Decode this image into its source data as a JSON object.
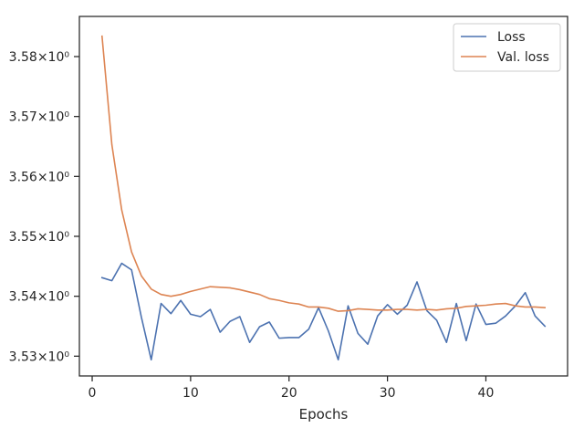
{
  "chart_data": {
    "type": "line",
    "title": "",
    "xlabel": "Epochs",
    "ylabel": "",
    "xlim": [
      -1.3,
      48.3
    ],
    "ylim": [
      3.5267,
      3.5867
    ],
    "x_ticks": [
      0,
      10,
      20,
      30,
      40
    ],
    "y_ticks": [
      3.53,
      3.54,
      3.55,
      3.56,
      3.57,
      3.58
    ],
    "y_tick_labels": [
      "3.53×10⁰",
      "3.54×10⁰",
      "3.55×10⁰",
      "3.56×10⁰",
      "3.57×10⁰",
      "3.58×10⁰"
    ],
    "grid": false,
    "legend_position": "top-right",
    "x": [
      1,
      2,
      3,
      4,
      5,
      6,
      7,
      8,
      9,
      10,
      11,
      12,
      13,
      14,
      15,
      16,
      17,
      18,
      19,
      20,
      21,
      22,
      23,
      24,
      25,
      26,
      27,
      28,
      29,
      30,
      31,
      32,
      33,
      34,
      35,
      36,
      37,
      38,
      39,
      40,
      41,
      42,
      43,
      44,
      45,
      46
    ],
    "series": [
      {
        "name": "Loss",
        "color": "#4c72b0",
        "values": [
          3.5431,
          3.5426,
          3.5455,
          3.5444,
          3.5365,
          3.5294,
          3.5388,
          3.5371,
          3.5393,
          3.537,
          3.5366,
          3.5378,
          3.534,
          3.5358,
          3.5366,
          3.5323,
          3.5349,
          3.5357,
          3.533,
          3.5331,
          3.5331,
          3.5345,
          3.5381,
          3.5342,
          3.5294,
          3.5384,
          3.5338,
          3.532,
          3.5367,
          3.5386,
          3.537,
          3.5385,
          3.5424,
          3.5376,
          3.536,
          3.5323,
          3.5388,
          3.5326,
          3.5387,
          3.5353,
          3.5355,
          3.5367,
          3.5384,
          3.5406,
          3.5367,
          3.535
        ]
      },
      {
        "name": "Val. loss",
        "color": "#dd8452",
        "values": [
          3.5834,
          3.5653,
          3.5544,
          3.5474,
          3.5434,
          3.5412,
          3.5403,
          3.54,
          3.5403,
          3.5408,
          3.5412,
          3.5416,
          3.5415,
          3.5414,
          3.5411,
          3.5407,
          3.5403,
          3.5396,
          3.5393,
          3.5389,
          3.5387,
          3.5382,
          3.5382,
          3.538,
          3.5375,
          3.5376,
          3.5379,
          3.5378,
          3.5377,
          3.5377,
          3.5378,
          3.5378,
          3.5377,
          3.5378,
          3.5377,
          3.5379,
          3.538,
          3.5383,
          3.5384,
          3.5385,
          3.5387,
          3.5388,
          3.5384,
          3.5382,
          3.5382,
          3.5381
        ]
      }
    ]
  }
}
